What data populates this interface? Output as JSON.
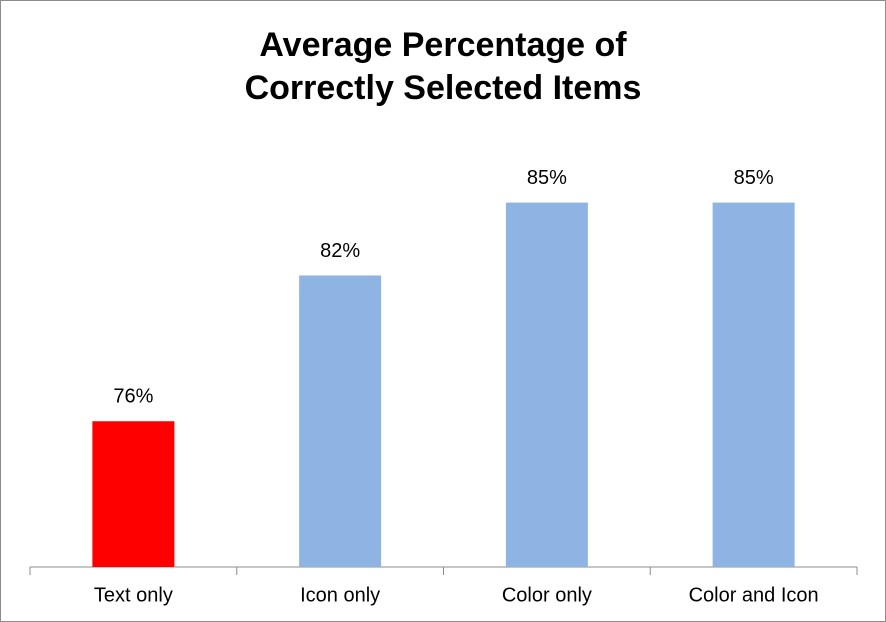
{
  "chart_data": {
    "type": "bar",
    "title": "Average Percentage of Correctly Selected Items",
    "categories": [
      "Text only",
      "Icon only",
      "Color only",
      "Color and Icon"
    ],
    "values": [
      76,
      82,
      85,
      85
    ],
    "value_labels": [
      "76%",
      "82%",
      "85%",
      "85%"
    ],
    "colors": [
      "#ff0000",
      "#8eb4e3",
      "#8eb4e3",
      "#8eb4e3"
    ],
    "ylim": [
      70,
      87
    ]
  }
}
